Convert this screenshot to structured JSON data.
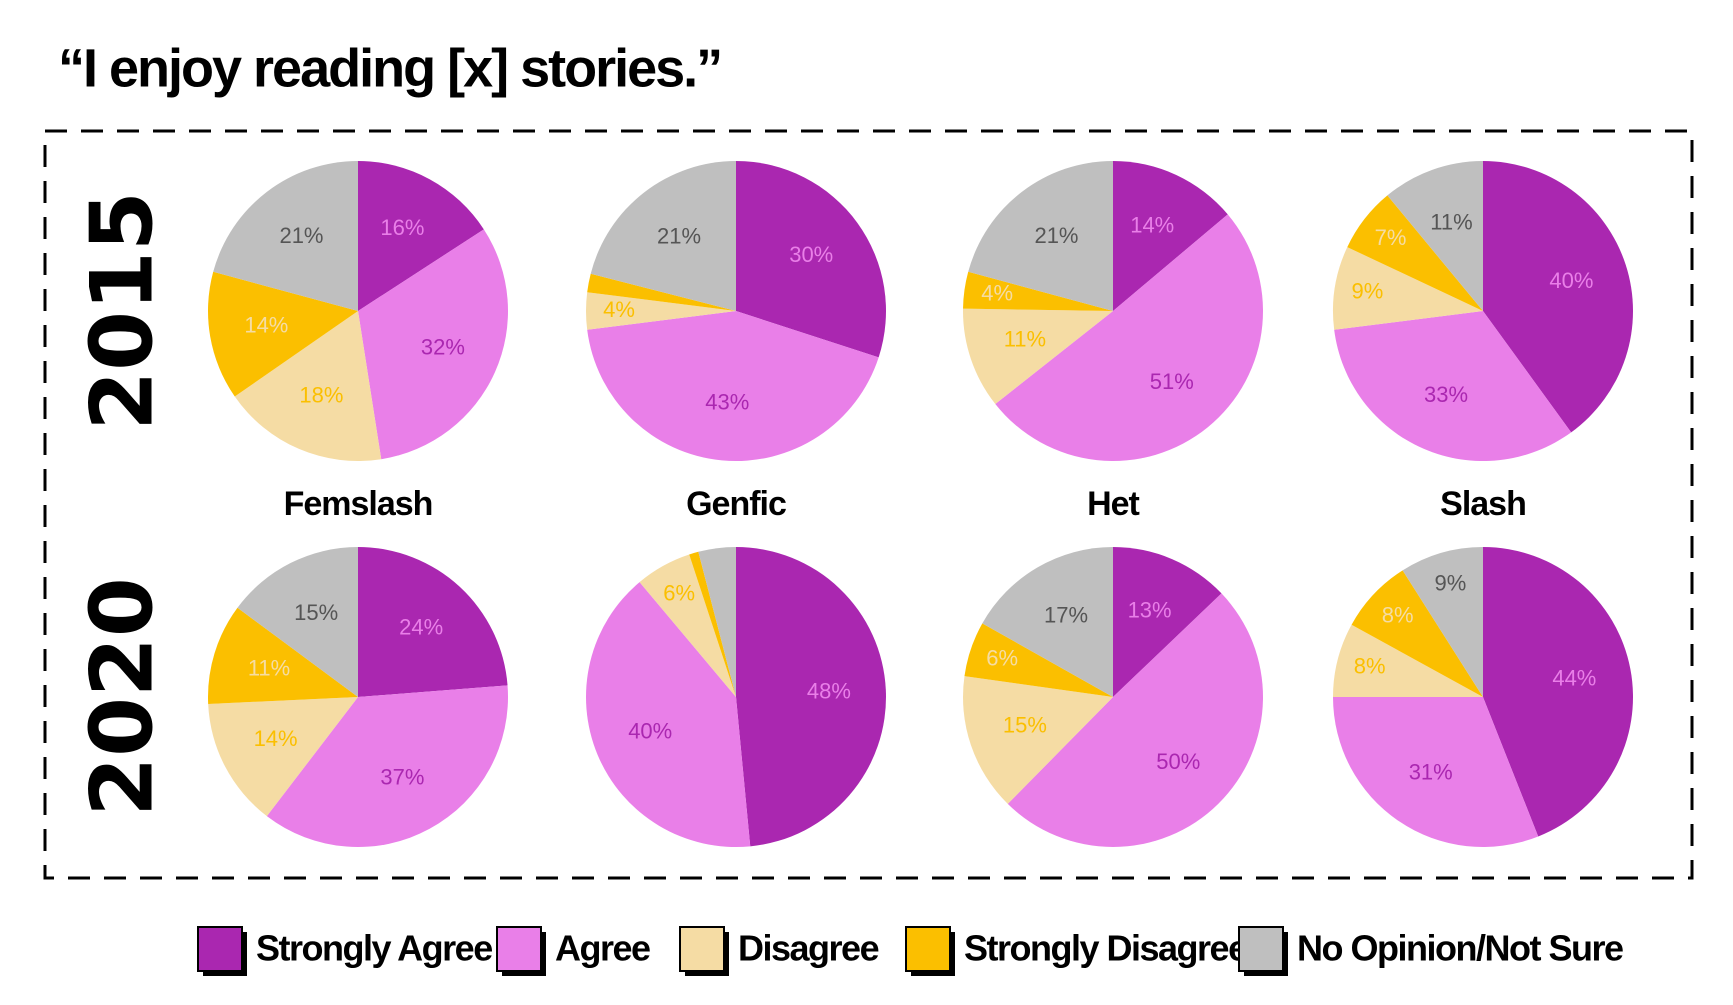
{
  "title": "“I enjoy reading [x] stories.”",
  "row_labels": [
    "2015",
    "2020"
  ],
  "column_labels": [
    "Femslash",
    "Genfic",
    "Het",
    "Slash"
  ],
  "legend": {
    "categories": [
      "Strongly Agree",
      "Agree",
      "Disagree",
      "Strongly Disagree",
      "No Opinion/Not Sure"
    ],
    "colors": [
      "#aa27b0",
      "#e97fe8",
      "#f5dca4",
      "#fbbf00",
      "#bfbfbf"
    ]
  },
  "chart_data": [
    {
      "type": "pie",
      "values": [
        16,
        32,
        18,
        14,
        21
      ],
      "value_labels": [
        "16%",
        "32%",
        "18%",
        "14%",
        "21%"
      ]
    },
    {
      "type": "pie",
      "values": [
        30,
        43,
        4,
        2,
        21
      ],
      "value_labels": [
        "30%",
        "43%",
        "4%",
        null,
        "21%"
      ]
    },
    {
      "type": "pie",
      "values": [
        14,
        51,
        11,
        4,
        21
      ],
      "value_labels": [
        "14%",
        "51%",
        "11%",
        "4%",
        "21%"
      ]
    },
    {
      "type": "pie",
      "values": [
        40,
        33,
        9,
        7,
        11
      ],
      "value_labels": [
        "40%",
        "33%",
        "9%",
        "7%",
        "11%"
      ]
    },
    {
      "type": "pie",
      "values": [
        24,
        37,
        14,
        11,
        15
      ],
      "value_labels": [
        "24%",
        "37%",
        "14%",
        "11%",
        "15%"
      ]
    },
    {
      "type": "pie",
      "values": [
        48,
        40,
        6,
        1,
        4
      ],
      "value_labels": [
        "48%",
        "40%",
        "6%",
        null,
        null
      ]
    },
    {
      "type": "pie",
      "values": [
        13,
        50,
        15,
        6,
        17
      ],
      "value_labels": [
        "13%",
        "50%",
        "15%",
        "6%",
        "17%"
      ]
    },
    {
      "type": "pie",
      "values": [
        44,
        31,
        8,
        8,
        9
      ],
      "value_labels": [
        "44%",
        "31%",
        "8%",
        "8%",
        "9%"
      ]
    }
  ]
}
